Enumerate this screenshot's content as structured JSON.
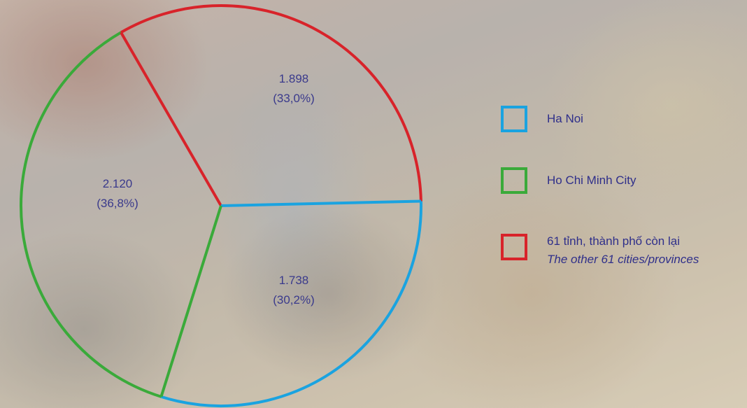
{
  "chart_data": {
    "type": "pie",
    "slices": [
      {
        "name": "Ha Noi",
        "value": 1738,
        "percent": 30.2,
        "value_label": "1.738",
        "percent_label": "(30,2%)",
        "color": "#1aa3e0"
      },
      {
        "name": "Ho Chi Minh City",
        "value": 2120,
        "percent": 36.8,
        "value_label": "2.120",
        "percent_label": "(36,8%)",
        "color": "#3aaa3a"
      },
      {
        "name": "61 tỉnh, thành phố còn lại",
        "value": 1898,
        "percent": 33.0,
        "value_label": "1.898",
        "percent_label": "(33,0%)",
        "color": "#d8232a"
      }
    ],
    "legend": {
      "position": "right",
      "items": [
        {
          "label": "Ha Noi",
          "sublabel": "",
          "color": "#1aa3e0"
        },
        {
          "label": "Ho Chi Minh City",
          "sublabel": "",
          "color": "#3aaa3a"
        },
        {
          "label": "61 tỉnh, thành phố còn lại",
          "sublabel": "The other 61 cities/provinces",
          "color": "#d8232a"
        }
      ]
    }
  }
}
